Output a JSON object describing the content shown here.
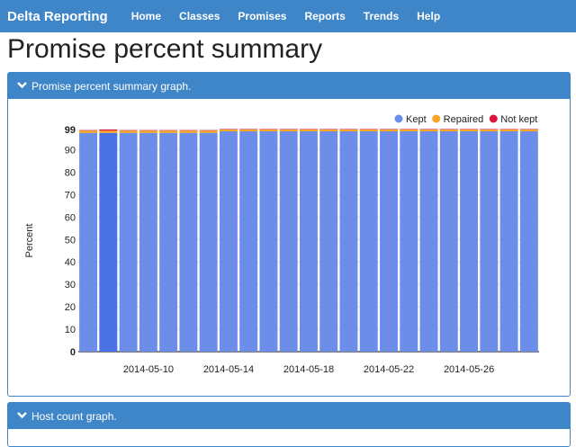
{
  "navbar": {
    "brand": "Delta Reporting",
    "items": [
      "Home",
      "Classes",
      "Promises",
      "Reports",
      "Trends",
      "Help"
    ]
  },
  "page_title": "Promise percent summary",
  "panels": {
    "summary_heading": "Promise percent summary graph.",
    "host_count_heading": "Host count graph."
  },
  "colors": {
    "accent": "#3f86c8",
    "kept": "#6d8ee8",
    "kept_highlight": "#4a72e2",
    "repaired": "#f5a623",
    "not_kept": "#dc143c"
  },
  "chart_data": {
    "type": "bar",
    "stacked": true,
    "title": "",
    "ylabel": "Percent",
    "xlabel": "",
    "ylim": [
      0,
      99
    ],
    "y_ticks": [
      0,
      10,
      20,
      30,
      40,
      50,
      60,
      70,
      80,
      90,
      99
    ],
    "x_tick_labels": [
      "2014-05-10",
      "2014-05-14",
      "2014-05-18",
      "2014-05-22",
      "2014-05-26"
    ],
    "categories": [
      "2014-05-07",
      "2014-05-08",
      "2014-05-09",
      "2014-05-10",
      "2014-05-11",
      "2014-05-12",
      "2014-05-13",
      "2014-05-14",
      "2014-05-15",
      "2014-05-16",
      "2014-05-17",
      "2014-05-18",
      "2014-05-19",
      "2014-05-20",
      "2014-05-21",
      "2014-05-22",
      "2014-05-23",
      "2014-05-24",
      "2014-05-25",
      "2014-05-26",
      "2014-05-27",
      "2014-05-28",
      "2014-05-29"
    ],
    "highlighted_index": 1,
    "legend_position": "top-right",
    "series": [
      {
        "name": "Kept",
        "color": "#6d8ee8",
        "values": [
          97.5,
          97.5,
          97.5,
          97.5,
          97.5,
          97.5,
          97.5,
          98.2,
          98.2,
          98.2,
          98.2,
          98.2,
          98.2,
          98.2,
          98.2,
          98.2,
          98.2,
          98.2,
          98.2,
          98.2,
          98.2,
          98.2,
          98.2
        ]
      },
      {
        "name": "Repaired",
        "color": "#f5a623",
        "values": [
          1.0,
          1.0,
          1.0,
          1.0,
          1.0,
          1.0,
          1.0,
          0.8,
          0.8,
          0.8,
          0.8,
          0.8,
          0.8,
          0.8,
          0.8,
          0.8,
          0.8,
          0.8,
          0.8,
          0.8,
          0.8,
          0.8,
          0.8
        ]
      },
      {
        "name": "Not kept",
        "color": "#dc143c",
        "values": [
          0.2,
          0.5,
          0.2,
          0.2,
          0.2,
          0.2,
          0.2,
          0.2,
          0.2,
          0.2,
          0.2,
          0.2,
          0.2,
          0.2,
          0.2,
          0.2,
          0.2,
          0.2,
          0.2,
          0.2,
          0.2,
          0.2,
          0.2
        ]
      }
    ]
  }
}
